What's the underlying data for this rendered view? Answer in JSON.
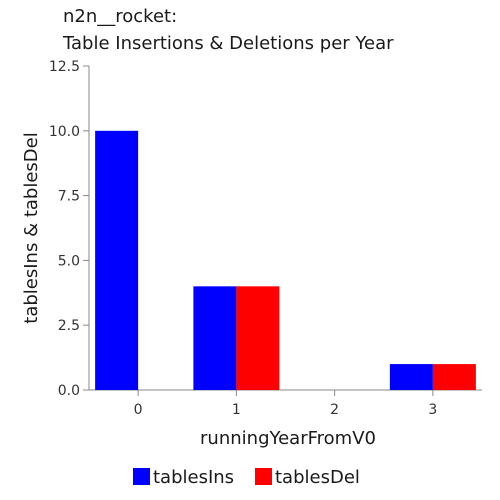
{
  "chart_data": {
    "type": "bar",
    "title_lines": [
      "n2n__rocket:",
      "Table Insertions & Deletions per Year"
    ],
    "xlabel": "runningYearFromV0",
    "ylabel": "tablesIns & tablesDel",
    "categories": [
      "0",
      "1",
      "2",
      "3"
    ],
    "series": [
      {
        "name": "tablesIns",
        "color": "#0000ff",
        "values": [
          10,
          4,
          0,
          1
        ]
      },
      {
        "name": "tablesDel",
        "color": "#ff0000",
        "values": [
          0,
          4,
          0,
          1
        ]
      }
    ],
    "ylim": [
      0,
      12.5
    ],
    "yticks": [
      "0.0",
      "2.5",
      "5.0",
      "7.5",
      "10.0",
      "12.5"
    ],
    "legend_position": "bottom-center",
    "grid": false
  }
}
